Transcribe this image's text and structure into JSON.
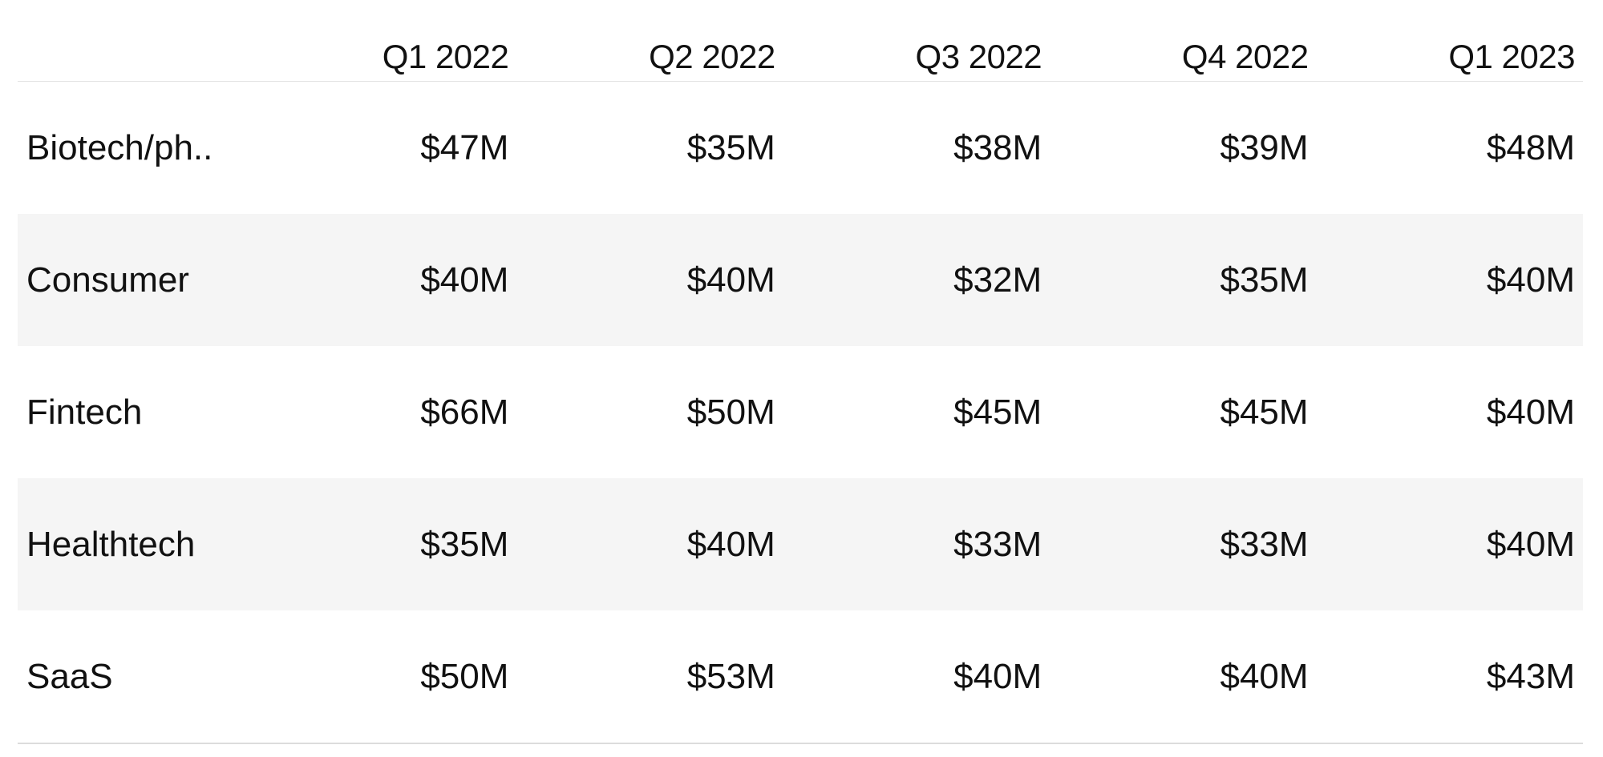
{
  "chart_data": {
    "type": "table",
    "columns": [
      "",
      "Q1 2022",
      "Q2 2022",
      "Q3 2022",
      "Q4 2022",
      "Q1 2023"
    ],
    "rows": [
      {
        "label": "Biotech/ph..",
        "values": [
          "$47M",
          "$35M",
          "$38M",
          "$39M",
          "$48M"
        ]
      },
      {
        "label": "Consumer",
        "values": [
          "$40M",
          "$40M",
          "$32M",
          "$35M",
          "$40M"
        ]
      },
      {
        "label": "Fintech",
        "values": [
          "$66M",
          "$50M",
          "$45M",
          "$45M",
          "$40M"
        ]
      },
      {
        "label": "Healthtech",
        "values": [
          "$35M",
          "$40M",
          "$33M",
          "$33M",
          "$40M"
        ]
      },
      {
        "label": "SaaS",
        "values": [
          "$50M",
          "$53M",
          "$40M",
          "$40M",
          "$43M"
        ]
      }
    ],
    "colors": {
      "stripe": "#f5f5f5",
      "rule": "#e2e2e2",
      "text": "#111111"
    }
  }
}
